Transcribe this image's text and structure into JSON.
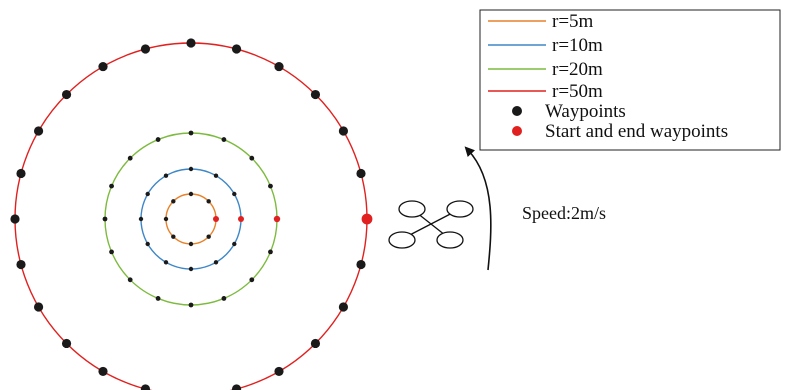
{
  "circles": [
    {
      "label": "r=5m",
      "color": "#e8822a",
      "waypoints": 8
    },
    {
      "label": "r=10m",
      "color": "#3e87c7",
      "waypoints": 12
    },
    {
      "label": "r=20m",
      "color": "#7dbb3f",
      "waypoints": 16
    },
    {
      "label": "r=50m",
      "color": "#e0211f",
      "waypoints": 24
    }
  ],
  "legend": {
    "waypoints_label": "Waypoints",
    "start_end_label": "Start and end waypoints",
    "waypoint_color": "#1a1a1a",
    "start_end_color": "#e0211f"
  },
  "speed_label": "Speed:2m/s",
  "drone_icon": "quadcopter-icon",
  "direction_icon": "curved-arrow-icon"
}
